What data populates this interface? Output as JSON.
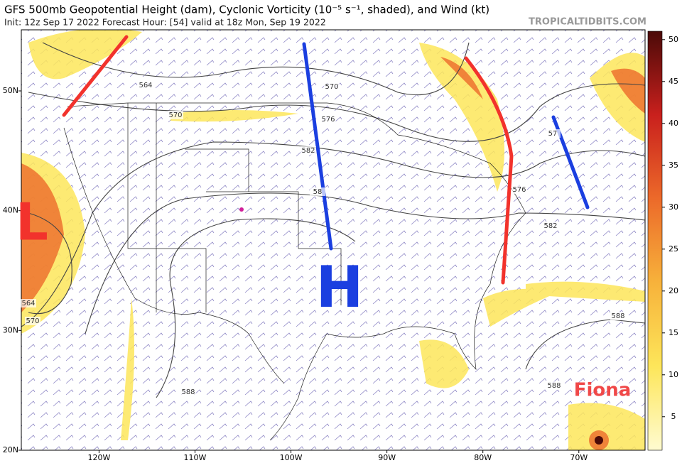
{
  "header": {
    "title": "GFS 500mb Geopotential Height (dam), Cyclonic Vorticity (10⁻⁵ s⁻¹, shaded), and Wind (kt)",
    "subtitle": "Init: 12z Sep 17 2022   Forecast Hour: [54]   valid at 18z Mon, Sep 19 2022",
    "source": "TROPICALTIDBITS.COM"
  },
  "map": {
    "latlim": [
      20,
      55.1
    ],
    "lonlim": [
      -128.1,
      -63.1
    ],
    "lat_ticks": [
      {
        "value": 20,
        "label": "20N"
      },
      {
        "value": 30,
        "label": "30N"
      },
      {
        "value": 40,
        "label": "40N"
      },
      {
        "value": 50,
        "label": "50N"
      }
    ],
    "lon_ticks": [
      {
        "value": -120,
        "label": "120W"
      },
      {
        "value": -110,
        "label": "110W"
      },
      {
        "value": -100,
        "label": "100W"
      },
      {
        "value": -90,
        "label": "90W"
      },
      {
        "value": -80,
        "label": "80W"
      },
      {
        "value": -70,
        "label": "70W"
      }
    ],
    "contour_labels": [
      564,
      570,
      576,
      582,
      58,
      570,
      582,
      588,
      588,
      588,
      564,
      570,
      57,
      576
    ],
    "annotations": [
      "L",
      "H",
      "Fiona"
    ]
  },
  "colorbar": {
    "range": [
      1,
      51
    ],
    "ticks": [
      5,
      10,
      15,
      20,
      25,
      30,
      35,
      40,
      45,
      50
    ]
  }
}
